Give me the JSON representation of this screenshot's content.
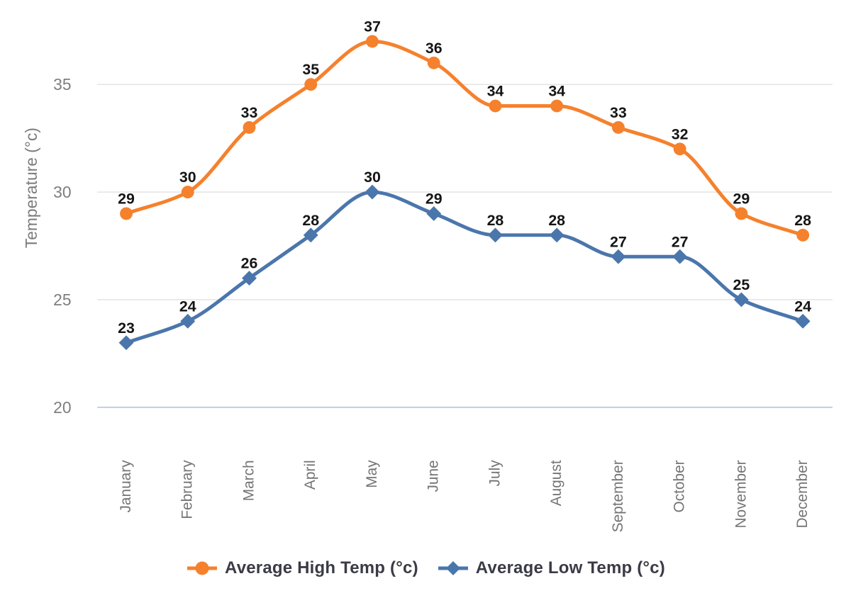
{
  "chart_data": {
    "type": "line",
    "title": "",
    "xlabel": "",
    "ylabel": "Temperature (°c)",
    "categories": [
      "January",
      "February",
      "March",
      "April",
      "May",
      "June",
      "July",
      "August",
      "September",
      "October",
      "November",
      "December"
    ],
    "series": [
      {
        "name": "Average High Temp (°c)",
        "color": "#F5812D",
        "marker": "circle",
        "values": [
          29,
          30,
          33,
          35,
          37,
          36,
          34,
          34,
          33,
          32,
          29,
          28
        ]
      },
      {
        "name": "Average Low Temp (°c)",
        "color": "#4A76AC",
        "marker": "diamond",
        "values": [
          23,
          24,
          26,
          28,
          30,
          29,
          28,
          28,
          27,
          27,
          25,
          24
        ]
      }
    ],
    "yticks": [
      20,
      25,
      30,
      35
    ],
    "ylim": [
      20,
      39
    ],
    "grid": true,
    "curve": "smooth-monotone",
    "data_labels": true,
    "legend_position": "bottom"
  },
  "colors": {
    "background": "#ffffff",
    "gridline": "#e1e1e1",
    "baseline": "#c6cdda",
    "tick_label": "#7e7e7e",
    "axis_title": "#7b7b7b",
    "category_label": "#757575",
    "data_label": "#151515",
    "legend_text": "#3b3b46"
  }
}
